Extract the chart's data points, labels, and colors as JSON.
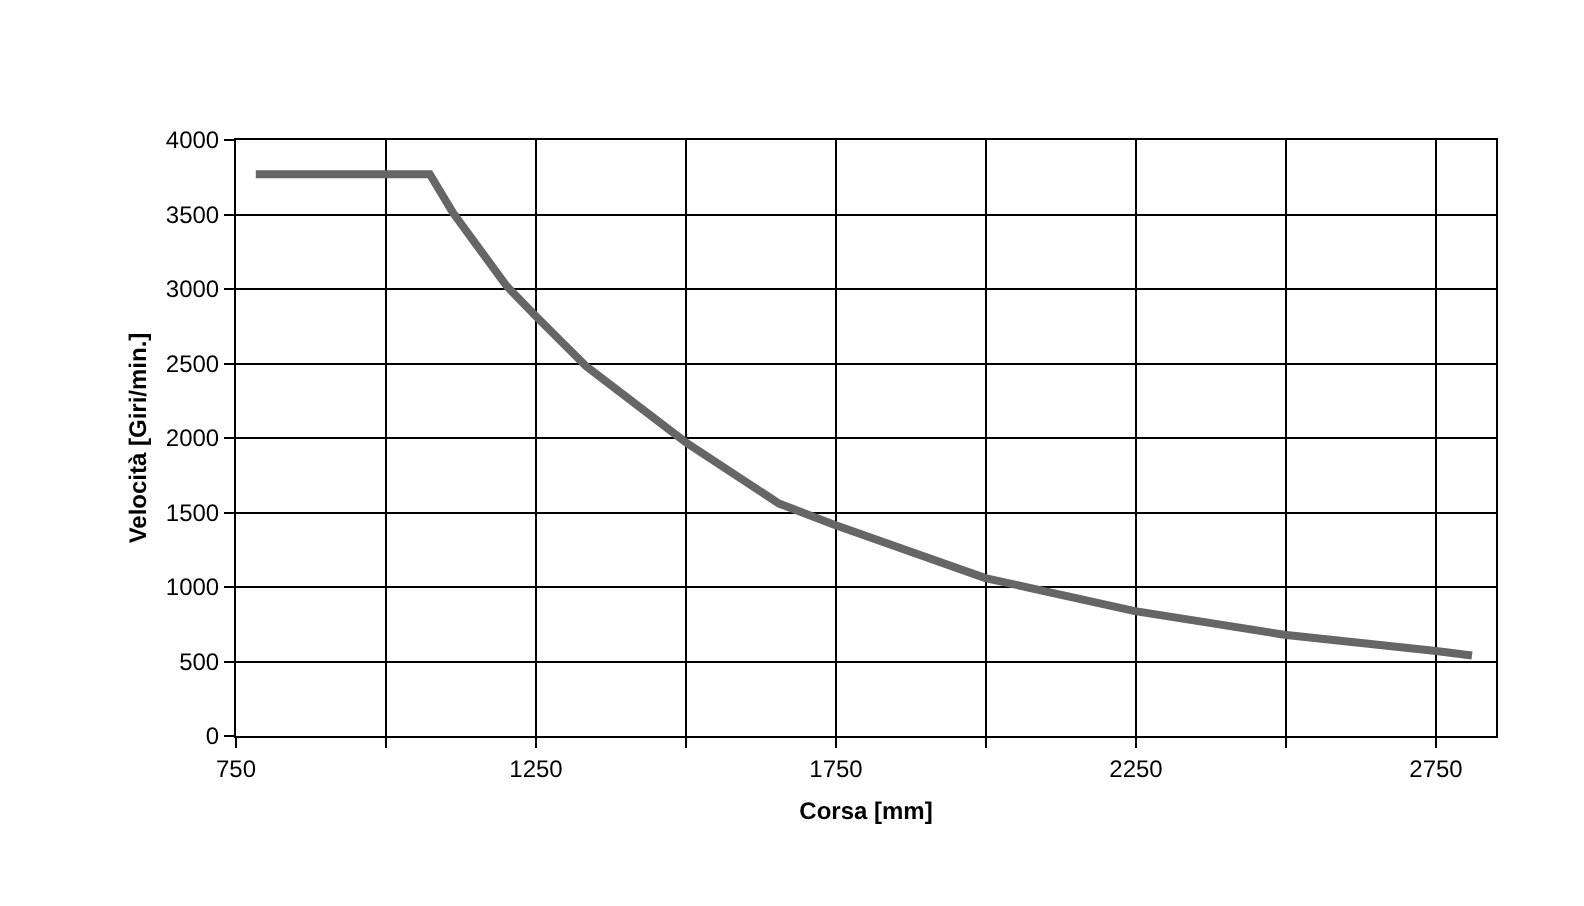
{
  "chart_data": {
    "type": "line",
    "xlabel": "Corsa [mm]",
    "ylabel": "Velocità [Giri/min.]",
    "xlim": [
      750,
      2850
    ],
    "ylim": [
      0,
      4000
    ],
    "xticks": [
      750,
      {
        "value": 1000,
        "label": null
      },
      1250,
      {
        "value": 1500,
        "label": null
      },
      1750,
      {
        "value": 2000,
        "label": null
      },
      2250,
      {
        "value": 2500,
        "label": null
      },
      2750
    ],
    "yticks": [
      0,
      500,
      1000,
      1500,
      2000,
      2500,
      3000,
      3500,
      4000
    ],
    "grid": true,
    "marker": "none",
    "line_style": "solid",
    "series": [
      {
        "color": "#666666",
        "x": [
          783,
          1073,
          1112,
          1201,
          1249,
          1334,
          1500,
          1655,
          1746,
          1999,
          2246,
          2497,
          2750,
          2810
        ],
        "values": [
          3770,
          3770,
          3510,
          3020,
          2820,
          2480,
          1970,
          1560,
          1420,
          1060,
          840,
          680,
          570,
          540
        ]
      }
    ]
  }
}
